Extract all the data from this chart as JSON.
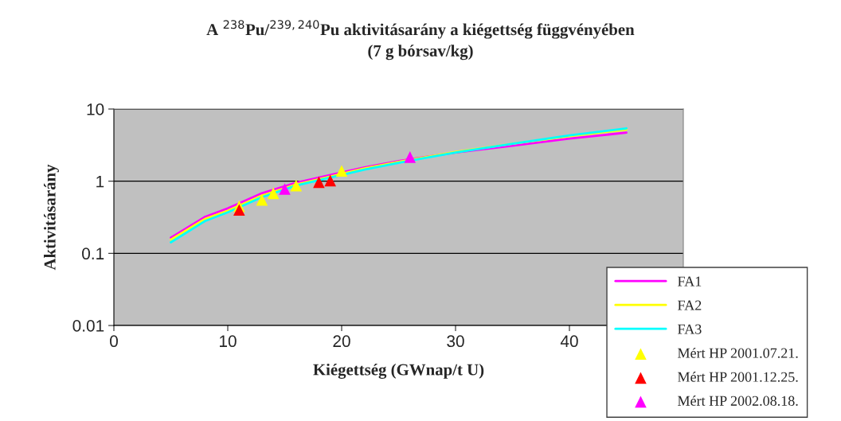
{
  "chart_data": {
    "type": "line",
    "title": "A $^{238}$Pu/$^{239,240}$Pu aktivitásarány a kiégettség függvényében\n(7 g bórsav/kg)",
    "xlabel": "Kiégettség (GWnap/t U)",
    "ylabel": "Aktivitásarány",
    "log": "y",
    "xlim": [
      0,
      50
    ],
    "xticks": [
      0,
      10,
      20,
      30,
      40
    ],
    "ylim": [
      0.01,
      10
    ],
    "yticks": [
      0.01,
      0.1,
      1,
      10
    ],
    "grid": "y",
    "legend": "bottom right",
    "line_style": "solid",
    "marker": "none",
    "series": [
      {
        "name": "FA1",
        "color": "#ff00ff",
        "x": [
          5,
          8,
          10,
          13,
          16,
          19,
          22,
          25,
          30,
          35,
          40,
          45
        ],
        "values": [
          0.165,
          0.32,
          0.42,
          0.68,
          0.95,
          1.22,
          1.55,
          1.9,
          2.5,
          3.1,
          3.9,
          4.7
        ]
      },
      {
        "name": "FA2",
        "color": "#ffff00",
        "x": [
          5,
          8,
          10,
          13,
          16,
          19,
          22,
          25,
          30,
          35,
          40,
          45
        ],
        "values": [
          0.155,
          0.3,
          0.39,
          0.63,
          0.9,
          1.16,
          1.5,
          1.85,
          2.55,
          3.3,
          4.2,
          5.2
        ]
      },
      {
        "name": "FA3",
        "color": "#00ffff",
        "x": [
          5,
          8,
          10,
          13,
          16,
          19,
          22,
          25,
          30,
          35,
          40,
          45
        ],
        "values": [
          0.142,
          0.28,
          0.37,
          0.6,
          0.87,
          1.12,
          1.45,
          1.8,
          2.5,
          3.3,
          4.3,
          5.4
        ]
      },
      {
        "name": "Mért HP 2001.07.21.",
        "type": "scatter",
        "marker": "triangle",
        "color": "#ffff00",
        "x": [
          11,
          13,
          14,
          16,
          20
        ],
        "values": [
          0.45,
          0.55,
          0.68,
          0.87,
          1.39
        ]
      },
      {
        "name": "Mért HP 2001.12.25.",
        "type": "scatter",
        "marker": "triangle",
        "color": "#ff0000",
        "x": [
          11,
          18,
          19
        ],
        "values": [
          0.4,
          0.97,
          1.02
        ]
      },
      {
        "name": "Mért HP 2002.08.18.",
        "type": "scatter",
        "marker": "triangle",
        "color": "#ff00ff",
        "x": [
          15,
          26
        ],
        "values": [
          0.78,
          2.16
        ]
      }
    ]
  }
}
